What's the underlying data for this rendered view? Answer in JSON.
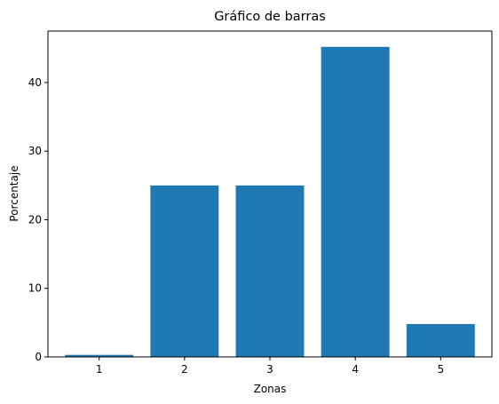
{
  "chart_data": {
    "type": "bar",
    "title": "Gráfico de barras",
    "xlabel": "Zonas",
    "ylabel": "Porcentaje",
    "categories": [
      "1",
      "2",
      "3",
      "4",
      "5"
    ],
    "values": [
      0.3,
      25,
      25,
      45.2,
      4.8
    ],
    "ylim": [
      0,
      47.5
    ],
    "yticks": [
      0,
      10,
      20,
      30,
      40
    ],
    "grid": false,
    "bar_color": "#1f77b4"
  }
}
